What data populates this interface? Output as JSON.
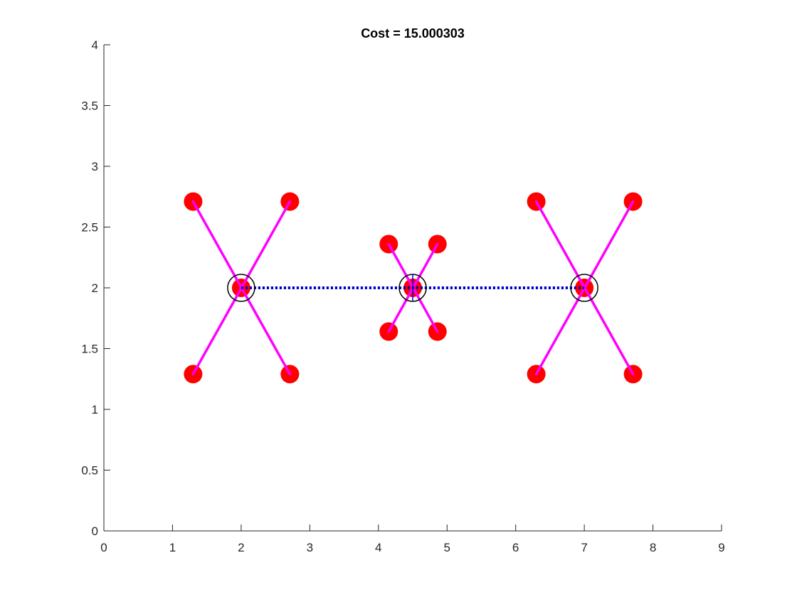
{
  "chart_data": {
    "type": "scatter",
    "title": "Cost = 15.000303",
    "xlabel": "",
    "ylabel": "",
    "xlim": [
      0,
      9
    ],
    "ylim": [
      0,
      4
    ],
    "xticks": [
      0,
      1,
      2,
      3,
      4,
      5,
      6,
      7,
      8,
      9
    ],
    "yticks": [
      0,
      0.5,
      1,
      1.5,
      2,
      2.5,
      3,
      3.5,
      4
    ],
    "xtick_labels": [
      "0",
      "1",
      "2",
      "3",
      "4",
      "5",
      "6",
      "7",
      "8",
      "9"
    ],
    "ytick_labels": [
      "0",
      "0.5",
      "1",
      "1.5",
      "2",
      "2.5",
      "3",
      "3.5",
      "4"
    ],
    "grid": false,
    "colors": {
      "points": "#ff0000",
      "spokes": "#ff00ff",
      "backbone": "#0000cc",
      "circles": "#000000",
      "axes": "#262626"
    },
    "points": [
      {
        "x": 1.3,
        "y": 2.71
      },
      {
        "x": 2.71,
        "y": 2.71
      },
      {
        "x": 1.3,
        "y": 1.29
      },
      {
        "x": 2.71,
        "y": 1.29
      },
      {
        "x": 4.15,
        "y": 2.36
      },
      {
        "x": 4.86,
        "y": 2.36
      },
      {
        "x": 4.15,
        "y": 1.64
      },
      {
        "x": 4.86,
        "y": 1.64
      },
      {
        "x": 6.3,
        "y": 2.71
      },
      {
        "x": 7.71,
        "y": 2.71
      },
      {
        "x": 6.3,
        "y": 1.29
      },
      {
        "x": 7.71,
        "y": 1.29
      },
      {
        "x": 2.0,
        "y": 2.0
      },
      {
        "x": 4.5,
        "y": 2.0
      },
      {
        "x": 7.0,
        "y": 2.0
      }
    ],
    "hubs": [
      {
        "x": 2.0,
        "y": 2.0
      },
      {
        "x": 4.5,
        "y": 2.0
      },
      {
        "x": 7.0,
        "y": 2.0
      }
    ],
    "spokes": [
      {
        "x1": 1.3,
        "y1": 2.71,
        "x2": 2.71,
        "y2": 1.29
      },
      {
        "x1": 2.71,
        "y1": 2.71,
        "x2": 1.3,
        "y2": 1.29
      },
      {
        "x1": 4.15,
        "y1": 2.36,
        "x2": 4.86,
        "y2": 1.64
      },
      {
        "x1": 4.86,
        "y1": 2.36,
        "x2": 4.15,
        "y2": 1.64
      },
      {
        "x1": 6.3,
        "y1": 2.71,
        "x2": 7.71,
        "y2": 1.29
      },
      {
        "x1": 7.71,
        "y1": 2.71,
        "x2": 6.3,
        "y2": 1.29
      }
    ],
    "backbone": [
      {
        "x": 2.0,
        "y": 2.0
      },
      {
        "x": 4.5,
        "y": 2.0
      },
      {
        "x": 7.0,
        "y": 2.0
      }
    ]
  }
}
